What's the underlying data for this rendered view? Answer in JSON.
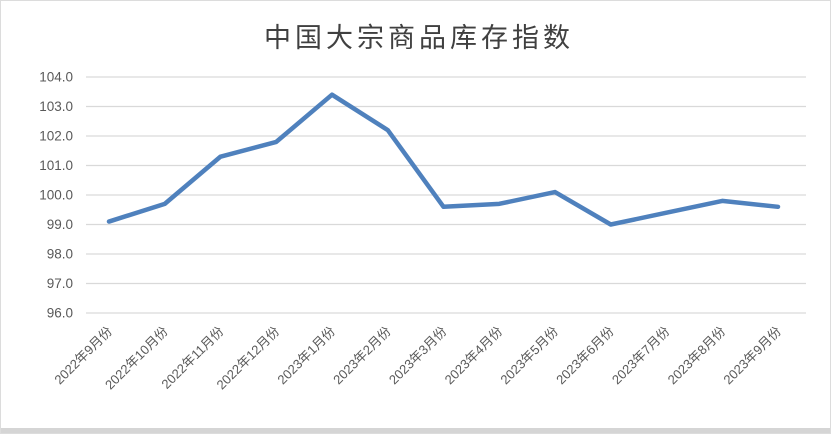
{
  "chart_data": {
    "type": "line",
    "title": "中国大宗商品库存指数",
    "categories": [
      "2022年9月份",
      "2022年10月份",
      "2022年11月份",
      "2022年12月份",
      "2023年1月份",
      "2023年2月份",
      "2023年3月份",
      "2023年4月份",
      "2023年5月份",
      "2023年6月份",
      "2023年7月份",
      "2023年8月份",
      "2023年9月份"
    ],
    "values": [
      99.1,
      99.7,
      101.3,
      101.8,
      103.4,
      102.2,
      99.6,
      99.7,
      100.1,
      99.0,
      99.4,
      99.8,
      99.6
    ],
    "xlabel": "",
    "ylabel": "",
    "ylim": [
      96,
      104
    ],
    "ytick_step": 1,
    "ytick_labels": [
      "96.0",
      "97.0",
      "98.0",
      "99.0",
      "100.0",
      "101.0",
      "102.0",
      "103.0",
      "104.0"
    ],
    "grid": true,
    "legend": false,
    "x_label_rotation": -45,
    "colors": {
      "line": "#4F81BD",
      "grid": "#D9D9D9",
      "tick_label": "#595959",
      "title": "#404040",
      "frame_border": "#DCDCDC",
      "bottom_bar": "#D5D5D5",
      "background": "#FFFFFF"
    }
  }
}
